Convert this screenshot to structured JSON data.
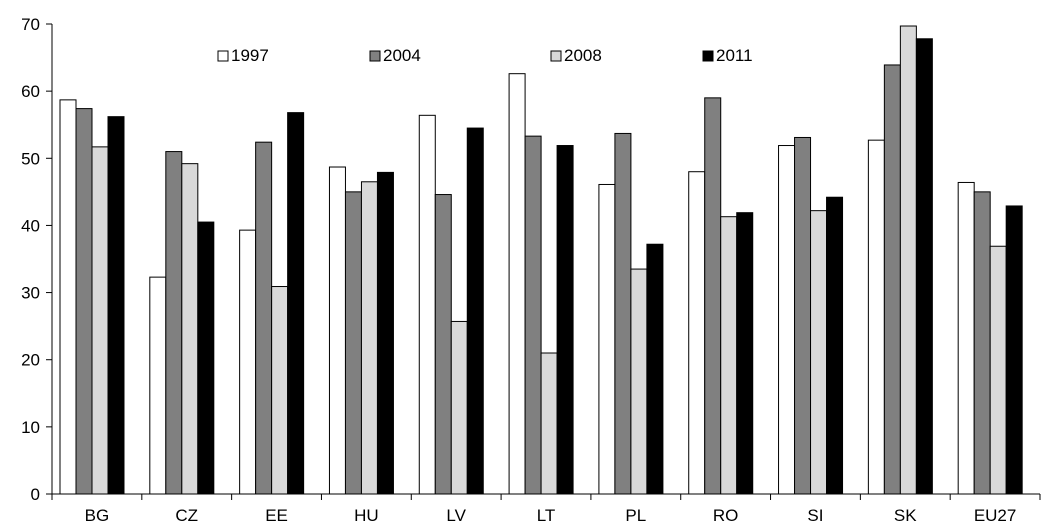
{
  "chart_data": {
    "type": "bar",
    "categories": [
      "BG",
      "CZ",
      "EE",
      "HU",
      "LV",
      "LT",
      "PL",
      "RO",
      "SI",
      "SK",
      "EU27"
    ],
    "series": [
      {
        "name": "1997",
        "color": "#ffffff",
        "values": [
          58.7,
          32.3,
          39.3,
          48.7,
          56.4,
          62.6,
          46.1,
          48.0,
          51.9,
          52.7,
          46.4
        ]
      },
      {
        "name": "2004",
        "color": "#808080",
        "values": [
          57.4,
          51.0,
          52.4,
          45.0,
          44.6,
          53.3,
          53.7,
          59.0,
          53.1,
          63.9,
          45.0
        ]
      },
      {
        "name": "2008",
        "color": "#d9d9d9",
        "values": [
          51.7,
          49.2,
          30.9,
          46.5,
          25.7,
          21.0,
          33.5,
          41.3,
          42.2,
          69.7,
          36.9
        ]
      },
      {
        "name": "2011",
        "color": "#000000",
        "values": [
          56.2,
          40.5,
          56.8,
          47.9,
          54.5,
          51.9,
          37.2,
          41.9,
          44.2,
          67.8,
          42.9
        ]
      }
    ],
    "yticks": [
      "0",
      "10",
      "20",
      "30",
      "40",
      "50",
      "60",
      "70"
    ],
    "ylim": [
      0,
      70
    ],
    "grid": false,
    "legend_position": "top-center"
  }
}
